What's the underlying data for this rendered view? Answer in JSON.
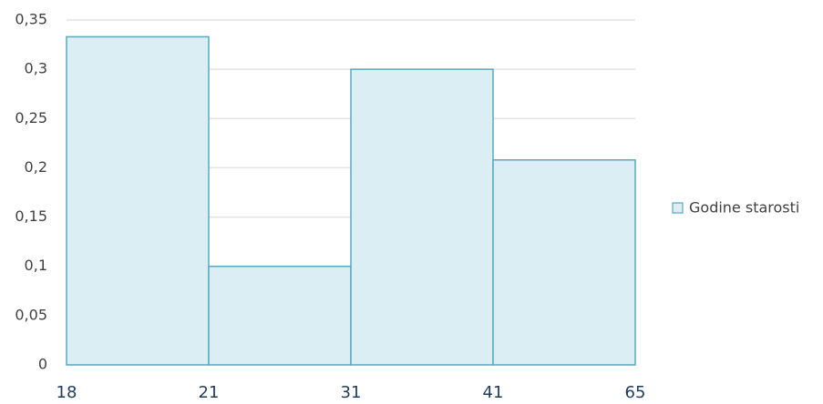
{
  "chart_data": {
    "type": "histogram",
    "bins": [
      18,
      21,
      31,
      41,
      65
    ],
    "series": [
      {
        "name": "Godine starosti",
        "color": "#daeef3",
        "values": [
          0.333,
          0.1,
          0.3,
          0.208
        ]
      }
    ],
    "ylim": [
      0,
      0.35
    ],
    "yticks": [
      0,
      {
        "value": 0.05,
        "label": "0,05"
      },
      {
        "value": 0.1,
        "label": "0,1"
      },
      {
        "value": 0.15,
        "label": "0,15"
      },
      {
        "value": 0.2,
        "label": "0,2"
      },
      {
        "value": 0.25,
        "label": "0,25"
      },
      {
        "value": 0.3,
        "label": "0,3"
      },
      {
        "value": 0.35,
        "label": "0,35"
      }
    ],
    "grid": true,
    "legend": "right"
  }
}
